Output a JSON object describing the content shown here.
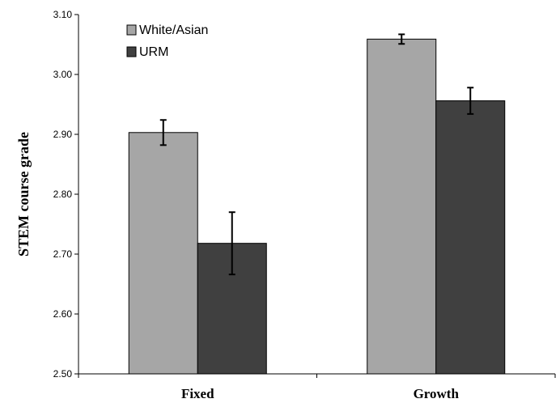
{
  "chart_data": {
    "type": "bar",
    "title": "",
    "xlabel": "",
    "ylabel": "STEM course grade",
    "categories": [
      "Fixed",
      "Growth"
    ],
    "ylim": [
      2.5,
      3.1
    ],
    "yticks": [
      "2.50",
      "2.60",
      "2.70",
      "2.80",
      "2.90",
      "3.00",
      "3.10"
    ],
    "grid": false,
    "legend_position": "top-left",
    "series": [
      {
        "name": "White/Asian",
        "color": "#a6a6a6",
        "values": [
          2.903,
          3.059
        ],
        "error": [
          0.021,
          0.008
        ]
      },
      {
        "name": "URM",
        "color": "#404040",
        "values": [
          2.718,
          2.956
        ],
        "error": [
          0.052,
          0.022
        ]
      }
    ]
  }
}
